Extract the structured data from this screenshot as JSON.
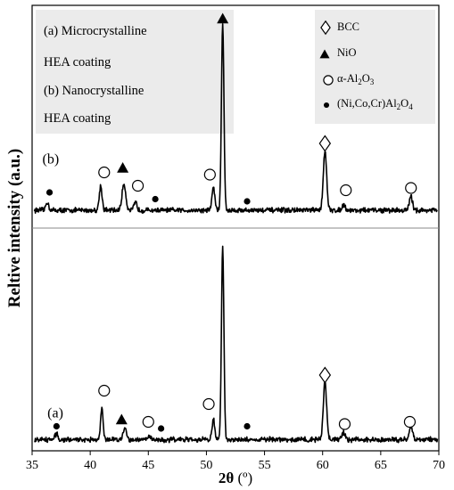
{
  "chart_data": {
    "type": "line",
    "xlabel": "2θ (º)",
    "xlabel_main": "2θ",
    "xlabel_unit": "(º)",
    "ylabel": "Reltive intensity (a.u.)",
    "xlim": [
      35,
      70
    ],
    "x_ticks": [
      35,
      40,
      45,
      50,
      55,
      60,
      65,
      70
    ],
    "x_tick_labels": [
      "35",
      "40",
      "45",
      "50",
      "55",
      "60",
      "65",
      "70"
    ],
    "y_ticks": [],
    "grid": false,
    "ylim": [
      0,
      200
    ],
    "panel_divider_y": 100,
    "left_legend": [
      "(a) Microcrystalline",
      "HEA coating",
      "(b) Nanocrystalline",
      "HEA coating"
    ],
    "right_legend": [
      {
        "symbol": "diamond",
        "text": "BCC"
      },
      {
        "symbol": "triangle",
        "text": "NiO"
      },
      {
        "symbol": "circle",
        "text": "α-Al",
        "sub1": "2",
        "mid": "O",
        "sub2": "3"
      },
      {
        "symbol": "dot",
        "text": "(Ni,Co,Cr)Al",
        "sub1": "2",
        "mid": "O",
        "sub2": "4"
      }
    ],
    "series": [
      {
        "name": "(b)",
        "label": "(b)",
        "label_x": 36.6,
        "label_y": 129,
        "baseline": 108,
        "noise": 0.9,
        "peaks": [
          {
            "x": 36.3,
            "h": 3.5,
            "w": 0.18
          },
          {
            "x": 40.9,
            "h": 11,
            "w": 0.17
          },
          {
            "x": 42.9,
            "h": 12,
            "w": 0.22
          },
          {
            "x": 43.9,
            "h": 3.5,
            "w": 0.18
          },
          {
            "x": 50.6,
            "h": 10,
            "w": 0.18
          },
          {
            "x": 51.4,
            "h": 84,
            "w": 0.15
          },
          {
            "x": 60.2,
            "h": 27,
            "w": 0.2
          },
          {
            "x": 61.8,
            "h": 2.5,
            "w": 0.2
          },
          {
            "x": 67.6,
            "h": 6,
            "w": 0.2
          }
        ],
        "markers": [
          {
            "x": 36.5,
            "y": 116,
            "symbol": "dot"
          },
          {
            "x": 41.2,
            "y": 125,
            "symbol": "circle"
          },
          {
            "x": 42.8,
            "y": 127,
            "symbol": "triangle"
          },
          {
            "x": 44.1,
            "y": 119,
            "symbol": "circle"
          },
          {
            "x": 45.6,
            "y": 113,
            "symbol": "dot"
          },
          {
            "x": 50.3,
            "y": 124,
            "symbol": "circle"
          },
          {
            "x": 53.5,
            "y": 112,
            "symbol": "dot"
          },
          {
            "x": 60.2,
            "y": 138,
            "symbol": "diamond"
          },
          {
            "x": 62.0,
            "y": 117,
            "symbol": "circle"
          },
          {
            "x": 67.6,
            "y": 118,
            "symbol": "circle"
          }
        ]
      },
      {
        "name": "(a)",
        "label": "(a)",
        "label_x": 37.0,
        "label_y": 15,
        "baseline": 5,
        "noise": 0.9,
        "peaks": [
          {
            "x": 37.1,
            "h": 2.5,
            "w": 0.2
          },
          {
            "x": 41.0,
            "h": 14,
            "w": 0.16
          },
          {
            "x": 43.0,
            "h": 5,
            "w": 0.22
          },
          {
            "x": 45.1,
            "h": 1.5,
            "w": 0.2
          },
          {
            "x": 50.6,
            "h": 9,
            "w": 0.16
          },
          {
            "x": 51.4,
            "h": 86,
            "w": 0.15
          },
          {
            "x": 60.2,
            "h": 26,
            "w": 0.2
          },
          {
            "x": 61.8,
            "h": 3,
            "w": 0.2
          },
          {
            "x": 67.6,
            "h": 6,
            "w": 0.2
          }
        ],
        "markers": [
          {
            "x": 37.1,
            "y": 11,
            "symbol": "dot"
          },
          {
            "x": 41.2,
            "y": 27,
            "symbol": "circle"
          },
          {
            "x": 42.7,
            "y": 14,
            "symbol": "triangle"
          },
          {
            "x": 45.0,
            "y": 13,
            "symbol": "circle"
          },
          {
            "x": 46.1,
            "y": 10,
            "symbol": "dot"
          },
          {
            "x": 50.2,
            "y": 21,
            "symbol": "circle"
          },
          {
            "x": 53.5,
            "y": 11,
            "symbol": "dot"
          },
          {
            "x": 60.2,
            "y": 34,
            "symbol": "diamond"
          },
          {
            "x": 61.9,
            "y": 12,
            "symbol": "circle"
          },
          {
            "x": 67.5,
            "y": 13,
            "symbol": "circle"
          }
        ]
      }
    ],
    "top_triangle": {
      "x": 51.4,
      "y": 194
    }
  }
}
